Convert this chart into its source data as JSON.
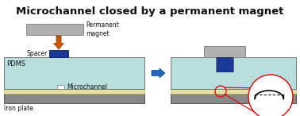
{
  "title": "Microchannel closed by a permanent magnet",
  "title_fontsize": 9.5,
  "title_fontweight": "bold",
  "bg_color": "#ffffff",
  "pdms_color": "#b8dede",
  "pdms_stroke": "#777777",
  "iron_color": "#888888",
  "iron_stroke": "#555555",
  "yellow_layer_color": "#e8e0a0",
  "magnet_color": "#b0b0b0",
  "magnet_stroke": "#888888",
  "spacer_color": "#1a3a9a",
  "orange_arrow_color": "#cc5500",
  "blue_arrow_color": "#2266bb",
  "red_circle_color": "#dd0000",
  "microchannel_label": "Microchannel",
  "pdms_label": "PDMS",
  "iron_label": "Iron plate",
  "spacer_label": "Spacer",
  "perm_magnet_label": "Permanent\nmagnet"
}
